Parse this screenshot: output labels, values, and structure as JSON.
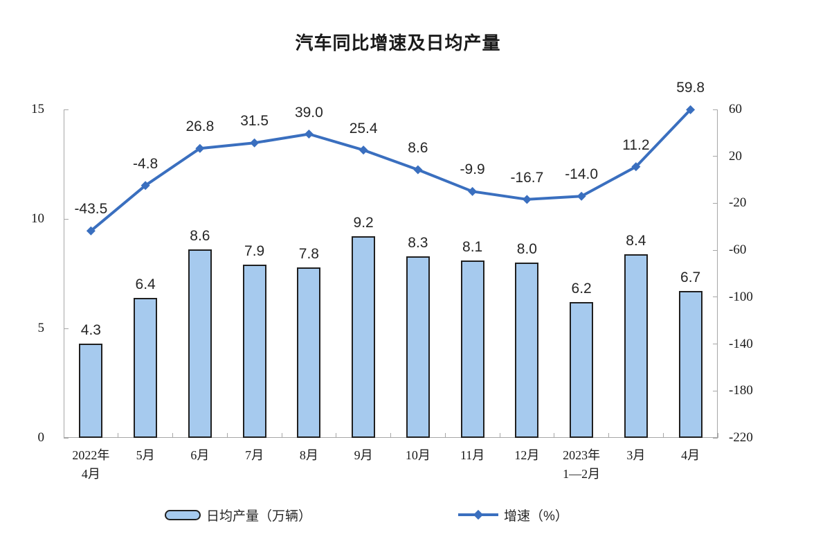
{
  "chart_data": {
    "type": "combo",
    "title": "汽车同比增速及日均产量",
    "categories": [
      "2022年\n4月",
      "5月",
      "6月",
      "7月",
      "8月",
      "9月",
      "10月",
      "11月",
      "12月",
      "2023年\n1—2月",
      "3月",
      "4月"
    ],
    "series": [
      {
        "name": "日均产量（万辆）",
        "type": "bar",
        "axis": "left",
        "values": [
          4.3,
          6.4,
          8.6,
          7.9,
          7.8,
          9.2,
          8.3,
          8.1,
          8.0,
          6.2,
          8.4,
          6.7
        ],
        "fill_color": "#a6caee",
        "border_color": "#1f1f1f"
      },
      {
        "name": "增速（%）",
        "type": "line",
        "axis": "right",
        "values": [
          -43.5,
          -4.8,
          26.8,
          31.5,
          39.0,
          25.4,
          8.6,
          -9.9,
          -16.7,
          -14.0,
          11.2,
          59.8
        ],
        "line_color": "#3a6fbf",
        "marker": "diamond"
      }
    ],
    "left_axis": {
      "min": 0,
      "max": 15,
      "ticks": [
        15,
        10,
        5,
        0
      ]
    },
    "right_axis": {
      "min": -220,
      "max": 60,
      "ticks": [
        60,
        20,
        -20,
        -60,
        -100,
        -140,
        -180,
        -220
      ]
    },
    "grid": false,
    "legend_position": "bottom",
    "data_labels": true
  }
}
